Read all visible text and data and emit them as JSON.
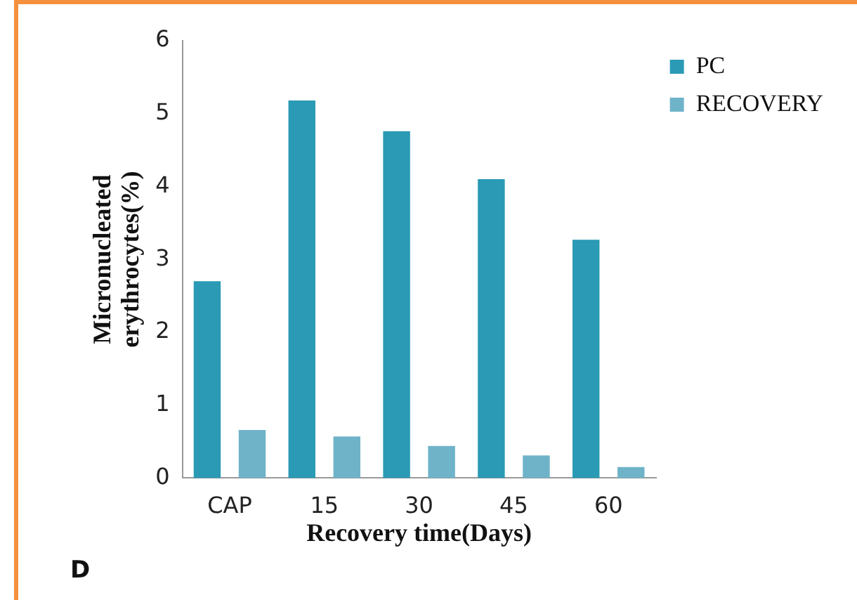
{
  "chart_data": {
    "type": "bar",
    "xlabel": "Recovery time(Days)",
    "ylabel": "Micronucleated erythrocytes(%)",
    "categories": [
      "CAP",
      "15",
      "30",
      "45",
      "60"
    ],
    "series": [
      {
        "name": "PC",
        "color": "#2a9ab5",
        "values": [
          2.7,
          5.18,
          4.76,
          4.1,
          3.27
        ]
      },
      {
        "name": "RECOVERY",
        "color": "#6fb3c9",
        "values": [
          0.66,
          0.57,
          0.44,
          0.31,
          0.15
        ]
      }
    ],
    "ylim": [
      0,
      6
    ],
    "yticks": [
      0,
      1,
      2,
      3,
      4,
      5,
      6
    ],
    "grid": false,
    "legend": "top right",
    "annotations": [
      "D"
    ]
  }
}
